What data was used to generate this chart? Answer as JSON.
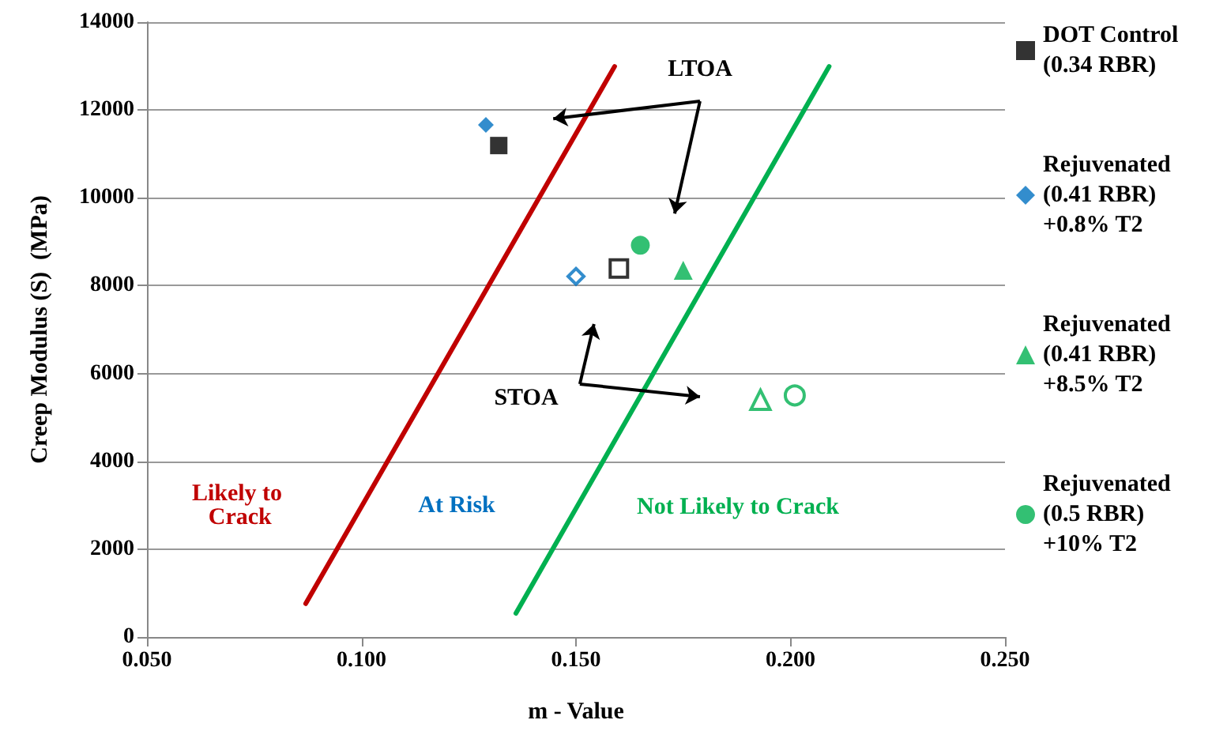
{
  "chart_data": {
    "type": "scatter",
    "xlabel": "m - Value",
    "ylabel": "Creep Modulus (S)  (MPa)",
    "xlim": [
      0.05,
      0.25
    ],
    "xticks": [
      {
        "value": 0.05,
        "label": "0.050"
      },
      {
        "value": 0.1,
        "label": "0.100"
      },
      {
        "value": 0.15,
        "label": "0.150"
      },
      {
        "value": 0.2,
        "label": "0.200"
      },
      {
        "value": 0.25,
        "label": "0.250"
      }
    ],
    "ylim": [
      0,
      14000
    ],
    "yticks": [
      0,
      2000,
      4000,
      6000,
      8000,
      10000,
      12000,
      14000
    ],
    "grid": "y",
    "legend": "right",
    "annotations": [
      "Likely to Crack",
      "At Risk",
      "Not Likely to Crack",
      "LTOA",
      "STOA"
    ],
    "series": [
      {
        "name": "DOT Control (0.34 RBR)",
        "color": "#000000",
        "marker": "square",
        "x": [
          0.132
        ],
        "values": [
          11190
        ]
      },
      {
        "name": "Rejuvenated (0.41 RBR) +0.8% T2",
        "color": "#0070c0",
        "marker": "diamond",
        "x": [
          0.129
        ],
        "values": [
          11660
        ]
      },
      {
        "name": "Rejuvenated (0.41 RBR) +8.5% T2",
        "color": "#00b050",
        "marker": "triangle",
        "x": [
          0.175
        ],
        "values": [
          8350
        ]
      },
      {
        "name": "Rejuvenated (0.5 RBR) +10% T2",
        "color": "#00b050",
        "marker": "circle",
        "x": [
          0.165
        ],
        "values": [
          8920
        ]
      },
      {
        "color": "#000000",
        "marker": "square",
        "x": [
          0.16
        ],
        "values": [
          8390
        ]
      },
      {
        "color": "#0070c0",
        "marker": "diamond",
        "x": [
          0.15
        ],
        "values": [
          8210
        ]
      },
      {
        "color": "#00b050",
        "marker": "triangle",
        "x": [
          0.193
        ],
        "values": [
          5400
        ]
      },
      {
        "color": "#00b050",
        "marker": "circle",
        "x": [
          0.201
        ],
        "values": [
          5500
        ]
      },
      {
        "type": "line",
        "color": "#c00000",
        "marker": "none",
        "x": [
          0.087,
          0.159
        ],
        "values": [
          760,
          12990
        ]
      },
      {
        "type": "line",
        "color": "#00b050",
        "marker": "none",
        "x": [
          0.136,
          0.209
        ],
        "values": [
          540,
          12990
        ]
      }
    ]
  }
}
